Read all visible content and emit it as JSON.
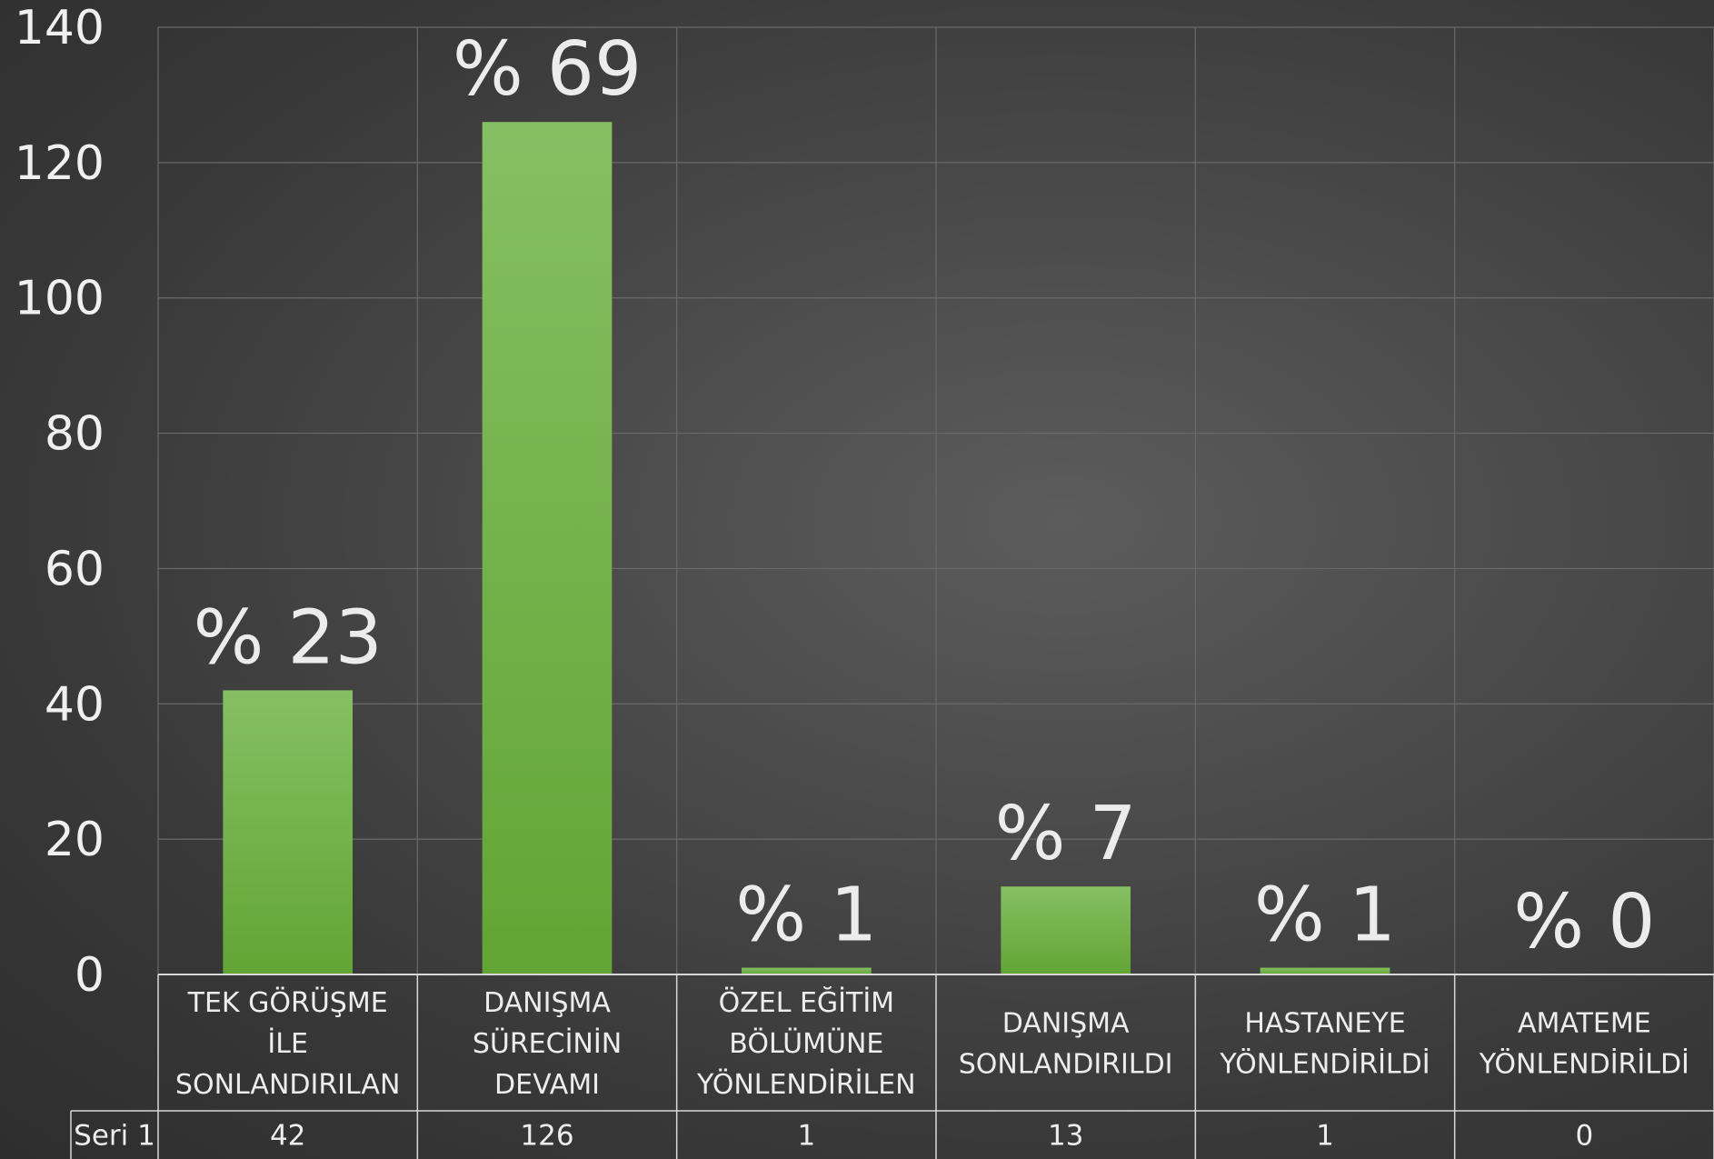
{
  "chart_data": {
    "type": "bar",
    "categories": [
      [
        "TEK GÖRÜŞME",
        "İLE",
        "SONLANDIRILAN"
      ],
      [
        "DANIŞMA",
        "SÜRECİNİN",
        "DEVAMI"
      ],
      [
        "ÖZEL EĞİTİM",
        "BÖLÜMÜNE",
        "YÖNLENDİRİLEN"
      ],
      [
        "DANIŞMA",
        "SONLANDIRILDI"
      ],
      [
        "HASTANEYE",
        "YÖNLENDİRİLDİ"
      ],
      [
        "AMATEME",
        "YÖNLENDİRİLDİ"
      ]
    ],
    "series": [
      {
        "name": "Seri 1",
        "values": [
          42,
          126,
          1,
          13,
          1,
          0
        ]
      }
    ],
    "data_labels": [
      "% 23",
      "% 69",
      "% 1",
      "% 7",
      "% 1",
      "% 0"
    ],
    "ylim": [
      0,
      140
    ],
    "yticks": [
      0,
      20,
      40,
      60,
      80,
      100,
      120,
      140
    ],
    "grid": true,
    "data_table": true,
    "colors": {
      "bar_top": "#86bf63",
      "bar_bottom": "#62a534",
      "grid": "#6a6a6a",
      "table_line": "#d8d8d8",
      "text": "#ececec"
    }
  }
}
